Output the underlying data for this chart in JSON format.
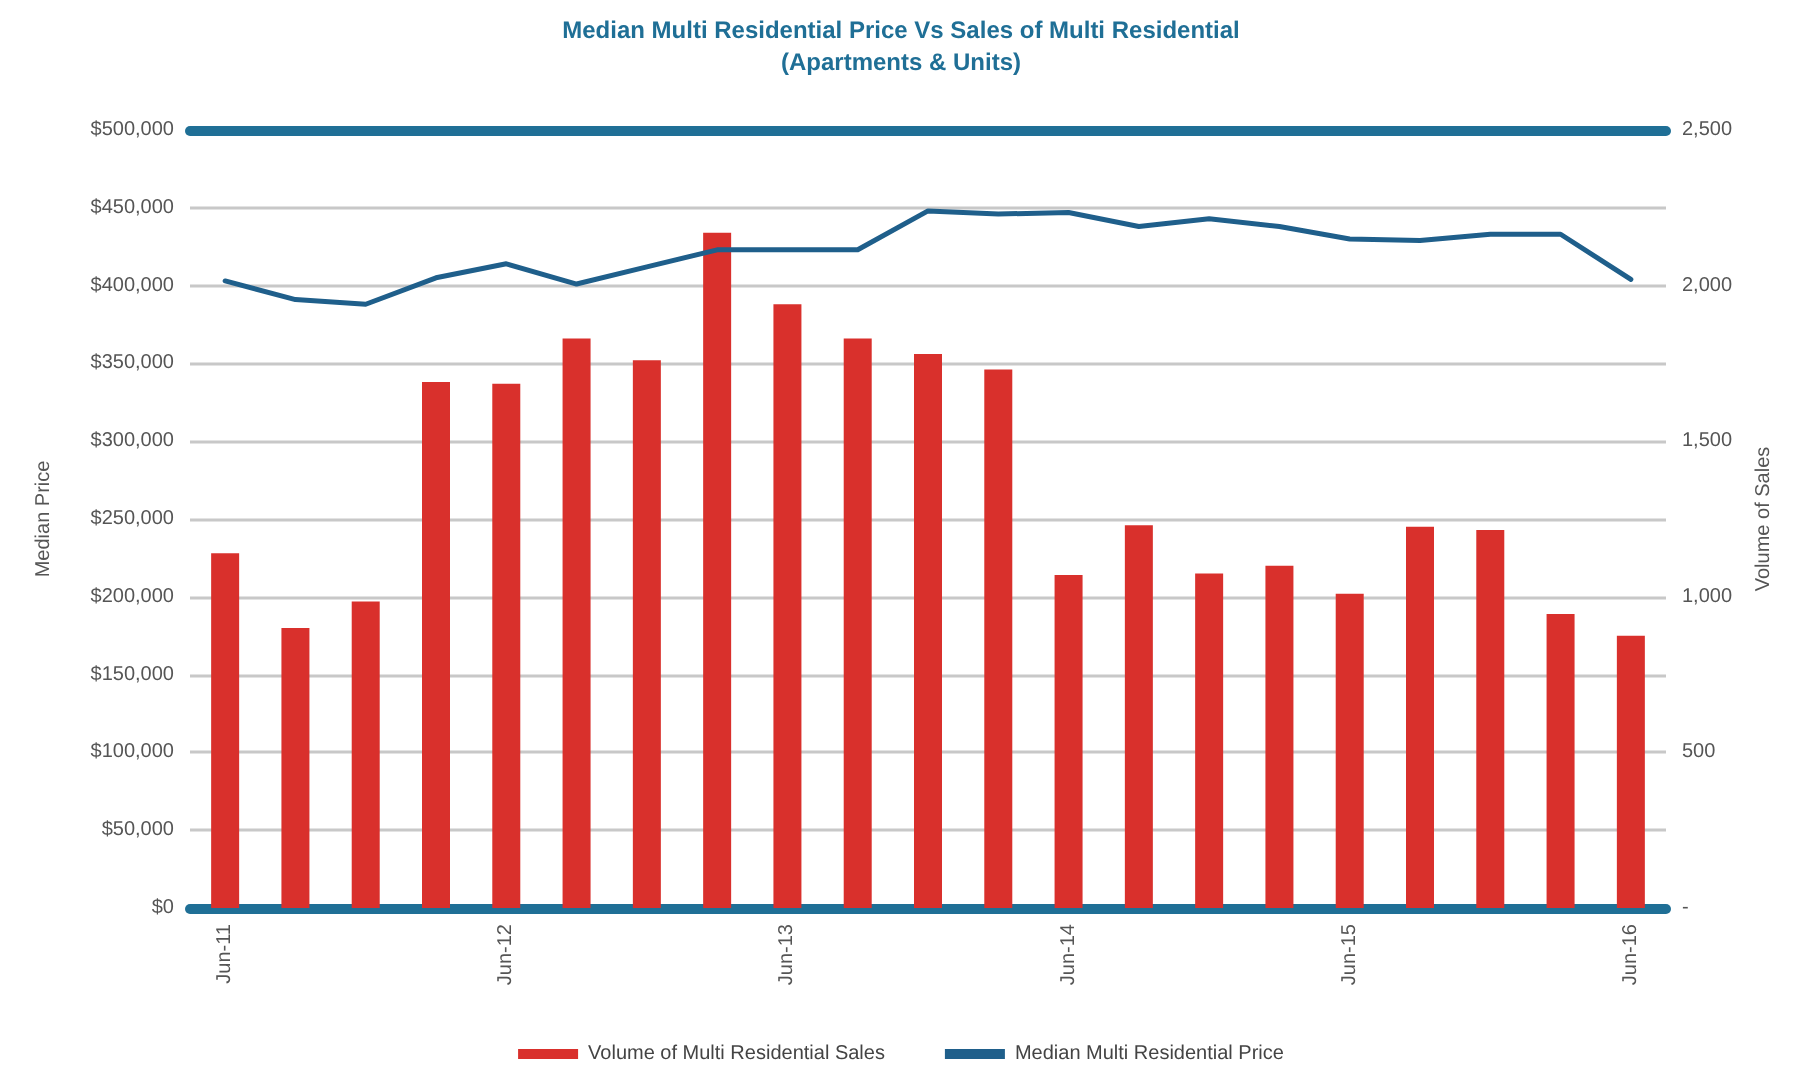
{
  "chart_data": {
    "type": "bar",
    "title": "Median Multi Residential Price Vs Sales of Multi Residential",
    "subtitle": "(Apartments & Units)",
    "ylabel": "Median Price",
    "y2label": "Volume of Sales",
    "categories": [
      "Jun-11",
      null,
      null,
      null,
      "Jun-12",
      null,
      null,
      null,
      "Jun-13",
      null,
      null,
      null,
      "Jun-14",
      null,
      null,
      null,
      "Jun-15",
      null,
      null,
      null,
      "Jun-16"
    ],
    "series": [
      {
        "name": "Volume of Multi Residential Sales",
        "axis": "y2",
        "color": "#d9302c",
        "values": [
          1140,
          900,
          985,
          1690,
          1685,
          1830,
          1760,
          2170,
          1940,
          1830,
          1780,
          1730,
          1070,
          1230,
          1075,
          1100,
          1010,
          1225,
          1215,
          945,
          875
        ]
      },
      {
        "name": "Median Multi Residential Price",
        "type": "line",
        "color": "#1f5f8b",
        "values": [
          403000,
          391000,
          388000,
          405000,
          414000,
          401000,
          412000,
          423000,
          423000,
          423000,
          448000,
          446000,
          447000,
          438000,
          443000,
          438000,
          430000,
          429000,
          433000,
          433000,
          404000
        ]
      }
    ],
    "ylim": [
      0,
      500000
    ],
    "yticks": [
      {
        "value": 0,
        "label": "$0"
      },
      {
        "value": 50000,
        "label": "$50,000"
      },
      {
        "value": 100000,
        "label": "$100,000"
      },
      {
        "value": 150000,
        "label": "$150,000"
      },
      {
        "value": 200000,
        "label": "$200,000"
      },
      {
        "value": 250000,
        "label": "$250,000"
      },
      {
        "value": 300000,
        "label": "$300,000"
      },
      {
        "value": 350000,
        "label": "$350,000"
      },
      {
        "value": 400000,
        "label": "$400,000"
      },
      {
        "value": 450000,
        "label": "$450,000"
      },
      {
        "value": 500000,
        "label": "$500,000"
      }
    ],
    "y2lim": [
      0,
      2500
    ],
    "y2ticks": [
      {
        "value": 0,
        "label": "-"
      },
      500,
      {
        "value": 1000,
        "label": "1,000"
      },
      {
        "value": 1500,
        "label": "1,500"
      },
      {
        "value": 2000,
        "label": "2,000"
      },
      {
        "value": 2500,
        "label": "2,500"
      }
    ],
    "grid": "y",
    "legend": "bottom",
    "marker": "none",
    "line_style": "solid"
  }
}
